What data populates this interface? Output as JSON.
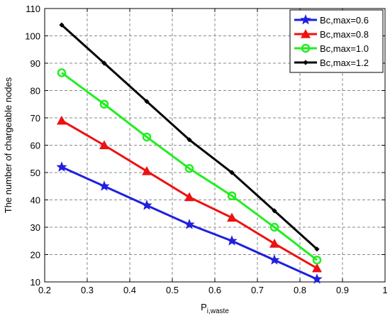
{
  "chart_data": {
    "type": "line",
    "xlabel_main": "P",
    "xlabel_sub": "i,waste",
    "ylabel": "The number of chargeable nodes",
    "xlim": [
      0.2,
      1.0
    ],
    "ylim": [
      10,
      110
    ],
    "xticks": [
      "0.2",
      "0.3",
      "0.4",
      "0.5",
      "0.6",
      "0.7",
      "0.8",
      "0.9",
      "1"
    ],
    "yticks": [
      "10",
      "20",
      "30",
      "40",
      "50",
      "60",
      "70",
      "80",
      "90",
      "100",
      "110"
    ],
    "grid": true,
    "legend_position": "top-right",
    "x": [
      0.24,
      0.34,
      0.44,
      0.54,
      0.64,
      0.74,
      0.84
    ],
    "series": [
      {
        "name": "Bc,max=0.6",
        "color": "#1f1fe0",
        "marker": "star",
        "values": [
          52,
          45,
          38,
          31,
          25,
          18,
          11
        ]
      },
      {
        "name": "Bc,max=0.8",
        "color": "#ee1111",
        "marker": "triangle",
        "values": [
          69,
          60,
          50.5,
          41,
          33.5,
          24,
          15
        ]
      },
      {
        "name": "Bc,max=1.0",
        "color": "#22ee22",
        "marker": "circle",
        "values": [
          86.5,
          75,
          63,
          51.5,
          41.5,
          30,
          18
        ]
      },
      {
        "name": "Bc,max=1.2",
        "color": "#000000",
        "marker": "diamond",
        "values": [
          104,
          90,
          76,
          62,
          50,
          36,
          22
        ]
      }
    ]
  }
}
